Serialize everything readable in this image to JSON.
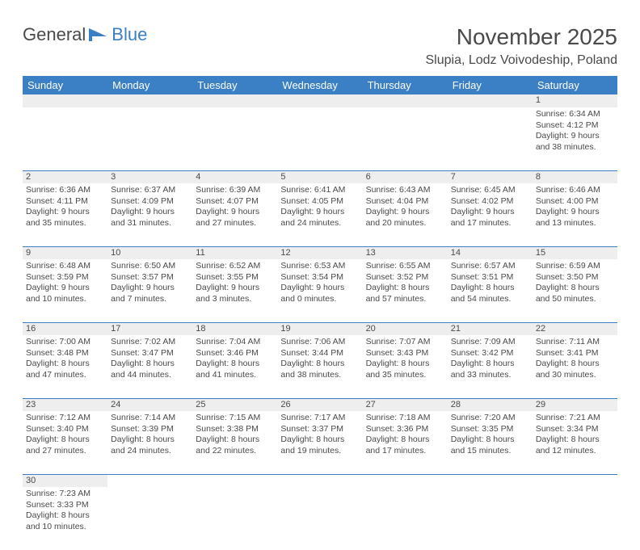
{
  "logo": {
    "text1": "General",
    "text2": "Blue"
  },
  "title": "November 2025",
  "location": "Slupia, Lodz Voivodeship, Poland",
  "colors": {
    "header_bg": "#3b7fc4",
    "header_text": "#ffffff",
    "daynum_bg": "#eeeeee",
    "border": "#3b7fc4",
    "text": "#4a4a4a"
  },
  "day_headers": [
    "Sunday",
    "Monday",
    "Tuesday",
    "Wednesday",
    "Thursday",
    "Friday",
    "Saturday"
  ],
  "weeks": [
    [
      null,
      null,
      null,
      null,
      null,
      null,
      {
        "n": "1",
        "sr": "6:34 AM",
        "ss": "4:12 PM",
        "dl": "9 hours and 38 minutes."
      }
    ],
    [
      {
        "n": "2",
        "sr": "6:36 AM",
        "ss": "4:11 PM",
        "dl": "9 hours and 35 minutes."
      },
      {
        "n": "3",
        "sr": "6:37 AM",
        "ss": "4:09 PM",
        "dl": "9 hours and 31 minutes."
      },
      {
        "n": "4",
        "sr": "6:39 AM",
        "ss": "4:07 PM",
        "dl": "9 hours and 27 minutes."
      },
      {
        "n": "5",
        "sr": "6:41 AM",
        "ss": "4:05 PM",
        "dl": "9 hours and 24 minutes."
      },
      {
        "n": "6",
        "sr": "6:43 AM",
        "ss": "4:04 PM",
        "dl": "9 hours and 20 minutes."
      },
      {
        "n": "7",
        "sr": "6:45 AM",
        "ss": "4:02 PM",
        "dl": "9 hours and 17 minutes."
      },
      {
        "n": "8",
        "sr": "6:46 AM",
        "ss": "4:00 PM",
        "dl": "9 hours and 13 minutes."
      }
    ],
    [
      {
        "n": "9",
        "sr": "6:48 AM",
        "ss": "3:59 PM",
        "dl": "9 hours and 10 minutes."
      },
      {
        "n": "10",
        "sr": "6:50 AM",
        "ss": "3:57 PM",
        "dl": "9 hours and 7 minutes."
      },
      {
        "n": "11",
        "sr": "6:52 AM",
        "ss": "3:55 PM",
        "dl": "9 hours and 3 minutes."
      },
      {
        "n": "12",
        "sr": "6:53 AM",
        "ss": "3:54 PM",
        "dl": "9 hours and 0 minutes."
      },
      {
        "n": "13",
        "sr": "6:55 AM",
        "ss": "3:52 PM",
        "dl": "8 hours and 57 minutes."
      },
      {
        "n": "14",
        "sr": "6:57 AM",
        "ss": "3:51 PM",
        "dl": "8 hours and 54 minutes."
      },
      {
        "n": "15",
        "sr": "6:59 AM",
        "ss": "3:50 PM",
        "dl": "8 hours and 50 minutes."
      }
    ],
    [
      {
        "n": "16",
        "sr": "7:00 AM",
        "ss": "3:48 PM",
        "dl": "8 hours and 47 minutes."
      },
      {
        "n": "17",
        "sr": "7:02 AM",
        "ss": "3:47 PM",
        "dl": "8 hours and 44 minutes."
      },
      {
        "n": "18",
        "sr": "7:04 AM",
        "ss": "3:46 PM",
        "dl": "8 hours and 41 minutes."
      },
      {
        "n": "19",
        "sr": "7:06 AM",
        "ss": "3:44 PM",
        "dl": "8 hours and 38 minutes."
      },
      {
        "n": "20",
        "sr": "7:07 AM",
        "ss": "3:43 PM",
        "dl": "8 hours and 35 minutes."
      },
      {
        "n": "21",
        "sr": "7:09 AM",
        "ss": "3:42 PM",
        "dl": "8 hours and 33 minutes."
      },
      {
        "n": "22",
        "sr": "7:11 AM",
        "ss": "3:41 PM",
        "dl": "8 hours and 30 minutes."
      }
    ],
    [
      {
        "n": "23",
        "sr": "7:12 AM",
        "ss": "3:40 PM",
        "dl": "8 hours and 27 minutes."
      },
      {
        "n": "24",
        "sr": "7:14 AM",
        "ss": "3:39 PM",
        "dl": "8 hours and 24 minutes."
      },
      {
        "n": "25",
        "sr": "7:15 AM",
        "ss": "3:38 PM",
        "dl": "8 hours and 22 minutes."
      },
      {
        "n": "26",
        "sr": "7:17 AM",
        "ss": "3:37 PM",
        "dl": "8 hours and 19 minutes."
      },
      {
        "n": "27",
        "sr": "7:18 AM",
        "ss": "3:36 PM",
        "dl": "8 hours and 17 minutes."
      },
      {
        "n": "28",
        "sr": "7:20 AM",
        "ss": "3:35 PM",
        "dl": "8 hours and 15 minutes."
      },
      {
        "n": "29",
        "sr": "7:21 AM",
        "ss": "3:34 PM",
        "dl": "8 hours and 12 minutes."
      }
    ],
    [
      {
        "n": "30",
        "sr": "7:23 AM",
        "ss": "3:33 PM",
        "dl": "8 hours and 10 minutes."
      },
      null,
      null,
      null,
      null,
      null,
      null
    ]
  ],
  "labels": {
    "sunrise": "Sunrise: ",
    "sunset": "Sunset: ",
    "daylight": "Daylight: "
  }
}
